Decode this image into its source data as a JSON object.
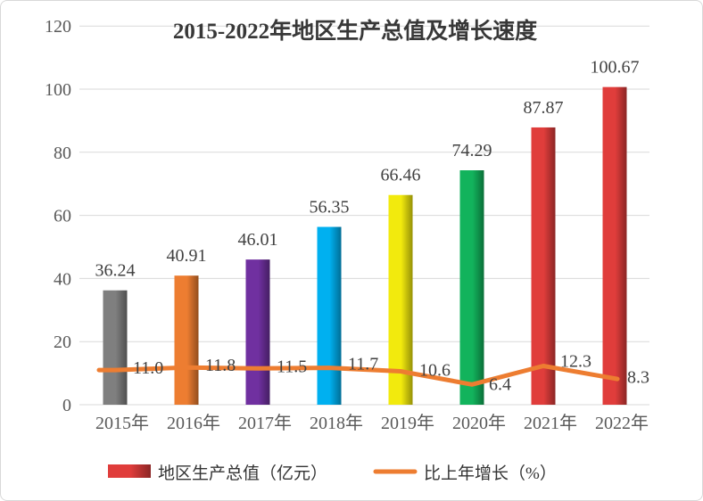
{
  "title": "2015-2022年地区生产总值及增长速度",
  "chart_data": {
    "type": "bar",
    "title": "2015-2022年地区生产总值及增长速度",
    "categories": [
      "2015年",
      "2016年",
      "2017年",
      "2018年",
      "2019年",
      "2020年",
      "2021年",
      "2022年"
    ],
    "series": [
      {
        "name": "地区生产总值（亿元）",
        "type": "bar",
        "values": [
          36.24,
          40.91,
          46.01,
          56.35,
          66.46,
          74.29,
          87.87,
          100.67
        ],
        "labels": [
          "36.24",
          "40.91",
          "46.01",
          "56.35",
          "66.46",
          "74.29",
          "87.87",
          "100.67"
        ],
        "bar_colors": [
          "#7F7F7F",
          "#ED7D31",
          "#7030A0",
          "#00B0F0",
          "#F2EA0D",
          "#12B35C",
          "#E03D3B",
          "#E03D3B"
        ],
        "legend_color": "#E03D3B"
      },
      {
        "name": "比上年增长（%）",
        "type": "line",
        "values": [
          11.0,
          11.8,
          11.5,
          11.7,
          10.6,
          6.4,
          12.3,
          8.3
        ],
        "labels": [
          "11.0",
          "11.8",
          "11.5",
          "11.7",
          "10.6",
          "6.4",
          "12.3",
          "8.3"
        ],
        "color": "#ED7D31"
      }
    ],
    "y_axis": {
      "min": 0,
      "max": 120,
      "step": 20,
      "ticks": [
        "0",
        "20",
        "40",
        "60",
        "80",
        "100",
        "120"
      ]
    },
    "grid": true,
    "legend_position": "bottom"
  },
  "colors": {
    "title_text": "#383838",
    "value_label": "#404040",
    "axis_label": "#595959",
    "gridline": "#D9D9D9",
    "legend_text": "#333333",
    "border": "#D8D8D8",
    "background": "#FFFFFF"
  }
}
